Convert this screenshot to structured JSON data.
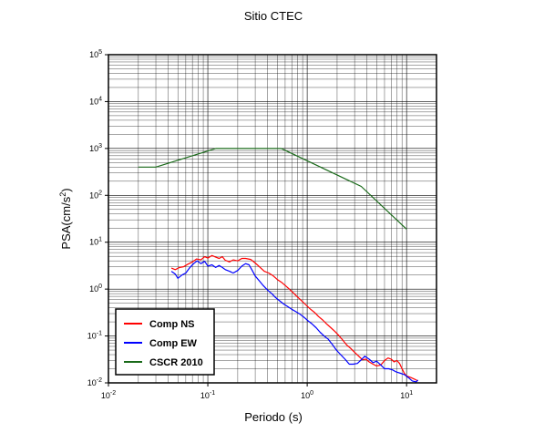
{
  "chart_data": {
    "type": "line",
    "title": "Sitio CTEC",
    "xlabel": "Periodo (s)",
    "ylabel_base": "PSA(cm/s",
    "ylabel_sup": "2",
    "ylabel_end": ")",
    "x_scale": "log",
    "y_scale": "log",
    "xlim": [
      0.01,
      20
    ],
    "ylim": [
      0.01,
      100000
    ],
    "grid": true,
    "legend_position": "bottom-left",
    "x_ticks": [
      {
        "base": "10",
        "exp": "-2",
        "value": 0.01
      },
      {
        "base": "10",
        "exp": "-1",
        "value": 0.1
      },
      {
        "base": "10",
        "exp": "0",
        "value": 1
      },
      {
        "base": "10",
        "exp": "1",
        "value": 10
      }
    ],
    "y_ticks": [
      {
        "base": "10",
        "exp": "-2",
        "value": 0.01
      },
      {
        "base": "10",
        "exp": "-1",
        "value": 0.1
      },
      {
        "base": "10",
        "exp": "0",
        "value": 1
      },
      {
        "base": "10",
        "exp": "1",
        "value": 10
      },
      {
        "base": "10",
        "exp": "2",
        "value": 100
      },
      {
        "base": "10",
        "exp": "3",
        "value": 1000
      },
      {
        "base": "10",
        "exp": "4",
        "value": 10000
      },
      {
        "base": "10",
        "exp": "5",
        "value": 100000
      }
    ],
    "series": [
      {
        "name": "Comp NS",
        "color": "#ff0000",
        "points": [
          [
            0.043,
            2.8
          ],
          [
            0.047,
            2.6
          ],
          [
            0.052,
            2.9
          ],
          [
            0.057,
            3.0
          ],
          [
            0.063,
            3.4
          ],
          [
            0.07,
            3.8
          ],
          [
            0.077,
            4.4
          ],
          [
            0.085,
            4.2
          ],
          [
            0.093,
            4.9
          ],
          [
            0.1,
            4.6
          ],
          [
            0.11,
            5.2
          ],
          [
            0.12,
            4.8
          ],
          [
            0.13,
            4.5
          ],
          [
            0.14,
            4.9
          ],
          [
            0.15,
            4.1
          ],
          [
            0.165,
            3.8
          ],
          [
            0.18,
            4.2
          ],
          [
            0.2,
            4.0
          ],
          [
            0.22,
            4.5
          ],
          [
            0.24,
            4.5
          ],
          [
            0.27,
            4.3
          ],
          [
            0.3,
            3.6
          ],
          [
            0.33,
            3.0
          ],
          [
            0.37,
            2.4
          ],
          [
            0.41,
            2.2
          ],
          [
            0.45,
            1.95
          ],
          [
            0.5,
            1.6
          ],
          [
            0.55,
            1.4
          ],
          [
            0.6,
            1.2
          ],
          [
            0.66,
            1.0
          ],
          [
            0.73,
            0.82
          ],
          [
            0.8,
            0.68
          ],
          [
            0.88,
            0.56
          ],
          [
            0.97,
            0.46
          ],
          [
            1.07,
            0.38
          ],
          [
            1.18,
            0.32
          ],
          [
            1.3,
            0.26
          ],
          [
            1.43,
            0.22
          ],
          [
            1.57,
            0.18
          ],
          [
            1.73,
            0.15
          ],
          [
            1.9,
            0.125
          ],
          [
            2.1,
            0.1
          ],
          [
            2.3,
            0.08
          ],
          [
            2.5,
            0.064
          ],
          [
            2.75,
            0.054
          ],
          [
            3.0,
            0.045
          ],
          [
            3.3,
            0.037
          ],
          [
            3.6,
            0.031
          ],
          [
            3.9,
            0.032
          ],
          [
            4.2,
            0.028
          ],
          [
            4.6,
            0.025
          ],
          [
            5.0,
            0.023
          ],
          [
            5.5,
            0.024
          ],
          [
            6.0,
            0.03
          ],
          [
            6.5,
            0.034
          ],
          [
            7.0,
            0.032
          ],
          [
            7.5,
            0.028
          ],
          [
            8.0,
            0.03
          ],
          [
            8.5,
            0.026
          ],
          [
            9.0,
            0.02
          ],
          [
            9.5,
            0.016
          ],
          [
            10.0,
            0.014
          ],
          [
            11.0,
            0.013
          ],
          [
            12.0,
            0.012
          ],
          [
            13.0,
            0.011
          ]
        ]
      },
      {
        "name": "Comp EW",
        "color": "#0000ff",
        "points": [
          [
            0.043,
            2.4
          ],
          [
            0.047,
            2.1
          ],
          [
            0.05,
            1.7
          ],
          [
            0.055,
            2.0
          ],
          [
            0.06,
            2.2
          ],
          [
            0.066,
            2.9
          ],
          [
            0.072,
            3.5
          ],
          [
            0.078,
            4.0
          ],
          [
            0.085,
            3.5
          ],
          [
            0.093,
            3.9
          ],
          [
            0.1,
            3.1
          ],
          [
            0.11,
            3.3
          ],
          [
            0.12,
            2.9
          ],
          [
            0.13,
            3.2
          ],
          [
            0.14,
            2.9
          ],
          [
            0.15,
            2.6
          ],
          [
            0.165,
            2.4
          ],
          [
            0.18,
            2.2
          ],
          [
            0.2,
            2.5
          ],
          [
            0.22,
            3.1
          ],
          [
            0.24,
            3.5
          ],
          [
            0.26,
            3.3
          ],
          [
            0.28,
            2.5
          ],
          [
            0.3,
            1.9
          ],
          [
            0.33,
            1.5
          ],
          [
            0.36,
            1.2
          ],
          [
            0.4,
            0.95
          ],
          [
            0.44,
            0.8
          ],
          [
            0.48,
            0.66
          ],
          [
            0.53,
            0.56
          ],
          [
            0.58,
            0.48
          ],
          [
            0.64,
            0.42
          ],
          [
            0.7,
            0.37
          ],
          [
            0.77,
            0.33
          ],
          [
            0.85,
            0.29
          ],
          [
            0.93,
            0.25
          ],
          [
            1.02,
            0.21
          ],
          [
            1.12,
            0.18
          ],
          [
            1.23,
            0.15
          ],
          [
            1.35,
            0.12
          ],
          [
            1.48,
            0.1
          ],
          [
            1.63,
            0.085
          ],
          [
            1.79,
            0.066
          ],
          [
            1.97,
            0.05
          ],
          [
            2.17,
            0.04
          ],
          [
            2.4,
            0.032
          ],
          [
            2.65,
            0.025
          ],
          [
            2.9,
            0.025
          ],
          [
            3.2,
            0.026
          ],
          [
            3.5,
            0.031
          ],
          [
            3.8,
            0.037
          ],
          [
            4.2,
            0.032
          ],
          [
            4.6,
            0.027
          ],
          [
            5.0,
            0.029
          ],
          [
            5.5,
            0.024
          ],
          [
            6.0,
            0.02
          ],
          [
            6.6,
            0.02
          ],
          [
            7.2,
            0.019
          ],
          [
            7.9,
            0.017
          ],
          [
            8.7,
            0.016
          ],
          [
            9.5,
            0.015
          ],
          [
            10.4,
            0.013
          ],
          [
            11.4,
            0.011
          ],
          [
            12.5,
            0.0105
          ],
          [
            13.0,
            0.0115
          ]
        ]
      },
      {
        "name": "CSCR 2010",
        "color": "#1a6a1a",
        "points": [
          [
            0.02,
            400
          ],
          [
            0.03,
            400
          ],
          [
            0.12,
            1000
          ],
          [
            0.55,
            1000
          ],
          [
            3.5,
            155
          ],
          [
            10.0,
            19
          ]
        ]
      }
    ]
  }
}
